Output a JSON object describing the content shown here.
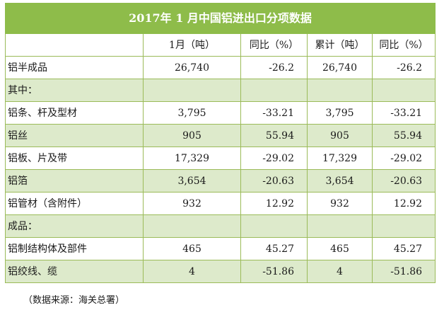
{
  "title": "2017年 1 月中国铝进出口分项数据",
  "headers": [
    "",
    "1月（吨）",
    "同比（%）",
    "累计（吨）",
    "同比（%）"
  ],
  "rows": [
    {
      "label": "铝半成品",
      "c1": "26,740",
      "c2": "-26.2",
      "c3": "26,740",
      "c4": "-26.2"
    },
    {
      "label": "其中：",
      "c1": "",
      "c2": "",
      "c3": "",
      "c4": ""
    },
    {
      "label": "铝条、杆及型材",
      "c1": "3,795",
      "c2": "-33.21",
      "c3": "3,795",
      "c4": "-33.21"
    },
    {
      "label": "铝丝",
      "c1": "905",
      "c2": "55.94",
      "c3": "905",
      "c4": "55.94"
    },
    {
      "label": "铝板、片及带",
      "c1": "17,329",
      "c2": "-29.02",
      "c3": "17,329",
      "c4": "-29.02"
    },
    {
      "label": "铝箔",
      "c1": "3,654",
      "c2": "-20.63",
      "c3": "3,654",
      "c4": "-20.63"
    },
    {
      "label": "铝管材（含附件）",
      "c1": "932",
      "c2": "12.92",
      "c3": "932",
      "c4": "12.92"
    },
    {
      "label": "成品：",
      "c1": "",
      "c2": "",
      "c3": "",
      "c4": ""
    },
    {
      "label": "铝制结构体及部件",
      "c1": "465",
      "c2": "45.27",
      "c3": "465",
      "c4": "45.27"
    },
    {
      "label": "铝绞线、缆",
      "c1": "4",
      "c2": "-51.86",
      "c3": "4",
      "c4": "-51.86"
    }
  ],
  "source_note": "（数据来源：海关总署）",
  "colors": {
    "header_green": "#8ebc4a",
    "alt_row": "#ddeacb",
    "border": "#9bbb59"
  }
}
